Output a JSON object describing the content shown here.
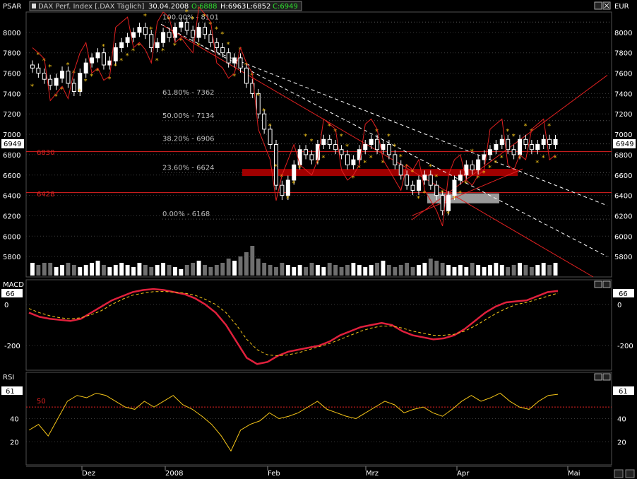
{
  "header": {
    "left_label": "PSAR",
    "right_label": "EUR",
    "instrument": "DAX Perf. Index [.DAX Täglich]",
    "date": "30.04.2008",
    "open": "O:6888",
    "high": "H:6963",
    "low": "L:6852",
    "close": "C:6949",
    "last_badge": "6949"
  },
  "macd_panel": {
    "label": "MACD",
    "badge": "66"
  },
  "rsi_panel": {
    "label": "RSI",
    "badge": "61",
    "level_label": "50"
  },
  "support_labels": {
    "upper": "6830",
    "lower": "6428"
  },
  "colors": {
    "background": "#000000",
    "candle_up": "#ffffff",
    "candle_down": "#000000",
    "psar": "#f5c518",
    "red_line": "#e02020",
    "macd_line": "#e0203c",
    "signal_line": "#f5c518",
    "volume_up": "#ffffff",
    "volume_down": "#6e6e6e",
    "zone_red": "#a00000",
    "zone_grey": "#b4b4b4"
  },
  "chart_data": {
    "type": "candlestick",
    "title": "DAX Perf. Index [.DAX Täglich]",
    "ylim": [
      5600,
      8200
    ],
    "y_ticks": [
      5800,
      6000,
      6200,
      6400,
      6600,
      6800,
      7000,
      7200,
      7400,
      7600,
      7800,
      8000
    ],
    "x_labels": [
      "Dez",
      "2008",
      "Feb",
      "Mrz",
      "Apr",
      "Mai"
    ],
    "fibonacci": [
      {
        "label": "100.00% - 8101",
        "value": 8101
      },
      {
        "label": "61.80% - 7362",
        "value": 7362
      },
      {
        "label": "50.00% - 7134",
        "value": 7134
      },
      {
        "label": "38.20% - 6906",
        "value": 6906
      },
      {
        "label": "23.60% - 6624",
        "value": 6624
      },
      {
        "label": "0.00% - 6168",
        "value": 6168
      }
    ],
    "horizontal_lines": [
      6830,
      6428
    ],
    "close_series": [
      7650,
      7600,
      7540,
      7480,
      7550,
      7620,
      7500,
      7420,
      7600,
      7700,
      7750,
      7800,
      7680,
      7720,
      7850,
      7900,
      7950,
      8000,
      8050,
      7980,
      7850,
      7900,
      8000,
      7950,
      8050,
      8100,
      8020,
      7950,
      8050,
      7980,
      7900,
      7850,
      7800,
      7700,
      7750,
      7650,
      7500,
      7400,
      7200,
      7050,
      6900,
      6500,
      6400,
      6550,
      6700,
      6850,
      6800,
      6750,
      6900,
      6950,
      6900,
      6850,
      6800,
      6700,
      6750,
      6850,
      6900,
      6950,
      6850,
      6900,
      6800,
      6700,
      6600,
      6500,
      6450,
      6550,
      6600,
      6500,
      6400,
      6250,
      6400,
      6550,
      6600,
      6700,
      6650,
      6750,
      6800,
      6850,
      6900,
      6950,
      6850,
      6800,
      6950,
      6900,
      6850,
      6900,
      6950,
      6900,
      6949
    ],
    "volume_scale": [
      6,
      5,
      6,
      6,
      4,
      5,
      6,
      5,
      4,
      5,
      6,
      7,
      5,
      4,
      5,
      6,
      5,
      4,
      6,
      5,
      4,
      5,
      6,
      5,
      4,
      3,
      5,
      6,
      7,
      5,
      4,
      5,
      6,
      8,
      7,
      9,
      11,
      14,
      8,
      6,
      5,
      4,
      6,
      5,
      4,
      5,
      4,
      6,
      5,
      4,
      6,
      5,
      4,
      5,
      6,
      5,
      4,
      5,
      6,
      7,
      5,
      4,
      5,
      6,
      4,
      5,
      6,
      8,
      7,
      6,
      5,
      4,
      5,
      4,
      6,
      5,
      4,
      5,
      6,
      5,
      4,
      5,
      6,
      5,
      4,
      5,
      6,
      5,
      6
    ],
    "macd_ticks": [
      0,
      -200
    ],
    "macd_series": [
      {
        "name": "MACD",
        "values": [
          -40,
          -60,
          -70,
          -75,
          -80,
          -70,
          -40,
          -10,
          20,
          40,
          60,
          70,
          75,
          70,
          60,
          50,
          30,
          0,
          -40,
          -100,
          -180,
          -260,
          -290,
          -280,
          -250,
          -230,
          -220,
          -210,
          -200,
          -180,
          -150,
          -130,
          -110,
          -100,
          -90,
          -100,
          -130,
          -150,
          -160,
          -170,
          -165,
          -150,
          -120,
          -80,
          -40,
          -10,
          10,
          15,
          20,
          40,
          60,
          66
        ]
      },
      {
        "name": "Signal",
        "values": [
          -20,
          -40,
          -55,
          -65,
          -70,
          -65,
          -50,
          -30,
          0,
          25,
          45,
          55,
          62,
          63,
          60,
          55,
          45,
          25,
          0,
          -40,
          -100,
          -170,
          -220,
          -245,
          -250,
          -245,
          -235,
          -220,
          -205,
          -190,
          -170,
          -150,
          -130,
          -115,
          -105,
          -105,
          -115,
          -130,
          -140,
          -150,
          -150,
          -145,
          -130,
          -105,
          -75,
          -45,
          -20,
          0,
          10,
          25,
          40,
          55
        ]
      }
    ],
    "rsi_ticks": [
      40,
      20
    ],
    "rsi_level": 50,
    "rsi_values": [
      30,
      35,
      25,
      40,
      55,
      60,
      58,
      62,
      60,
      55,
      50,
      48,
      55,
      50,
      55,
      60,
      52,
      48,
      42,
      35,
      25,
      12,
      30,
      35,
      38,
      45,
      40,
      42,
      45,
      50,
      55,
      48,
      45,
      42,
      40,
      45,
      50,
      55,
      52,
      45,
      48,
      50,
      45,
      42,
      48,
      55,
      60,
      55,
      58,
      62,
      55,
      50,
      48,
      55,
      60,
      61
    ]
  }
}
